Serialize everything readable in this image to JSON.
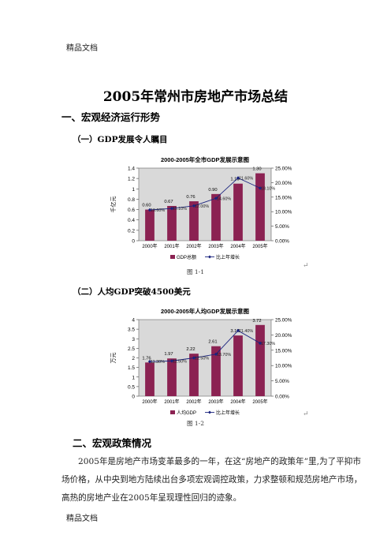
{
  "header": "精品文档",
  "footer": "精品文档",
  "title": "2005年常州市房地产市场总结",
  "section1": {
    "heading": "一、宏观经济运行形势"
  },
  "sub1": {
    "heading": "（一）GDP发展令人瞩目"
  },
  "sub2": {
    "heading": "（二）人均GDP突破4500美元"
  },
  "section2": {
    "heading": "二、宏观政策情况",
    "paragraph": "2005年是房地产市场变革最多的一年，在这“房地产的政策年”里,为了平抑市场价格，从中央到地方陆续出台多项宏观调控政策，力求整顿和规范房地产市场，高热的房地产业在2005年呈现理性回归的迹象。"
  },
  "figures": [
    {
      "caption": "图 1-1",
      "mark": "↵"
    },
    {
      "caption": "图 1-2",
      "mark": "↵"
    }
  ],
  "colors": {
    "bar": "#8b2252",
    "line": "#1a237e",
    "plot_bg": "#d9d9d9"
  },
  "chart_data": [
    {
      "type": "bar",
      "title": "2000-2005年全市GDP发展示意图",
      "categories": [
        "2000年",
        "2001年",
        "2002年",
        "2003年",
        "2004年",
        "2005年"
      ],
      "ylabel": "千亿元",
      "ylim": [
        0,
        1.4
      ],
      "yticks": [
        "0",
        "0.2",
        "0.4",
        "0.6",
        "0.8",
        "1",
        "1.2",
        "1.4"
      ],
      "y2lim": [
        0,
        0.25
      ],
      "y2ticks": [
        "0.00%",
        "5.00%",
        "10.00%",
        "15.00%",
        "20.00%",
        "25.00%"
      ],
      "series": [
        {
          "name": "GDP总额",
          "values": [
            0.6,
            0.67,
            0.76,
            0.9,
            1.1,
            1.3
          ],
          "labels": [
            "0.60",
            "0.67",
            "0.76",
            "0.90",
            "1.10",
            "1.30"
          ]
        },
        {
          "name": "比上年增长",
          "axis": "right",
          "values": [
            0.106,
            0.111,
            0.12,
            0.146,
            0.216,
            0.181
          ],
          "labels": [
            "10.60%",
            "11.10%",
            "12.00%",
            "14.60%",
            "21.60%",
            "18.10%"
          ]
        }
      ],
      "legend": "bottom",
      "grid": false
    },
    {
      "type": "bar",
      "title": "2000-2005年人均GDP发展示意图",
      "categories": [
        "2000年",
        "2001年",
        "2002年",
        "2003年",
        "2004年",
        "2005年"
      ],
      "ylabel": "万元",
      "ylim": [
        0,
        4
      ],
      "yticks": [
        "0",
        "0.5",
        "1",
        "1.5",
        "2",
        "2.5",
        "3",
        "3.5",
        "4"
      ],
      "y2lim": [
        0,
        0.25
      ],
      "y2ticks": [
        "0.00%",
        "5.00%",
        "10.00%",
        "15.00%",
        "20.00%",
        "25.00%"
      ],
      "series": [
        {
          "name": "人均GDP",
          "values": [
            1.76,
            1.97,
            2.22,
            2.61,
            3.17,
            3.72
          ],
          "labels": [
            "1.76",
            "1.97",
            "2.22",
            "2.61",
            "3.17",
            "3.72"
          ]
        },
        {
          "name": "比上年增长",
          "axis": "right",
          "values": [
            0.113,
            0.115,
            0.125,
            0.137,
            0.214,
            0.173
          ],
          "labels": [
            "11.30%",
            "11.50%",
            "12.50%",
            "13.70%",
            "21.40%",
            "17.30%"
          ]
        }
      ],
      "legend": "bottom",
      "grid": false
    }
  ]
}
